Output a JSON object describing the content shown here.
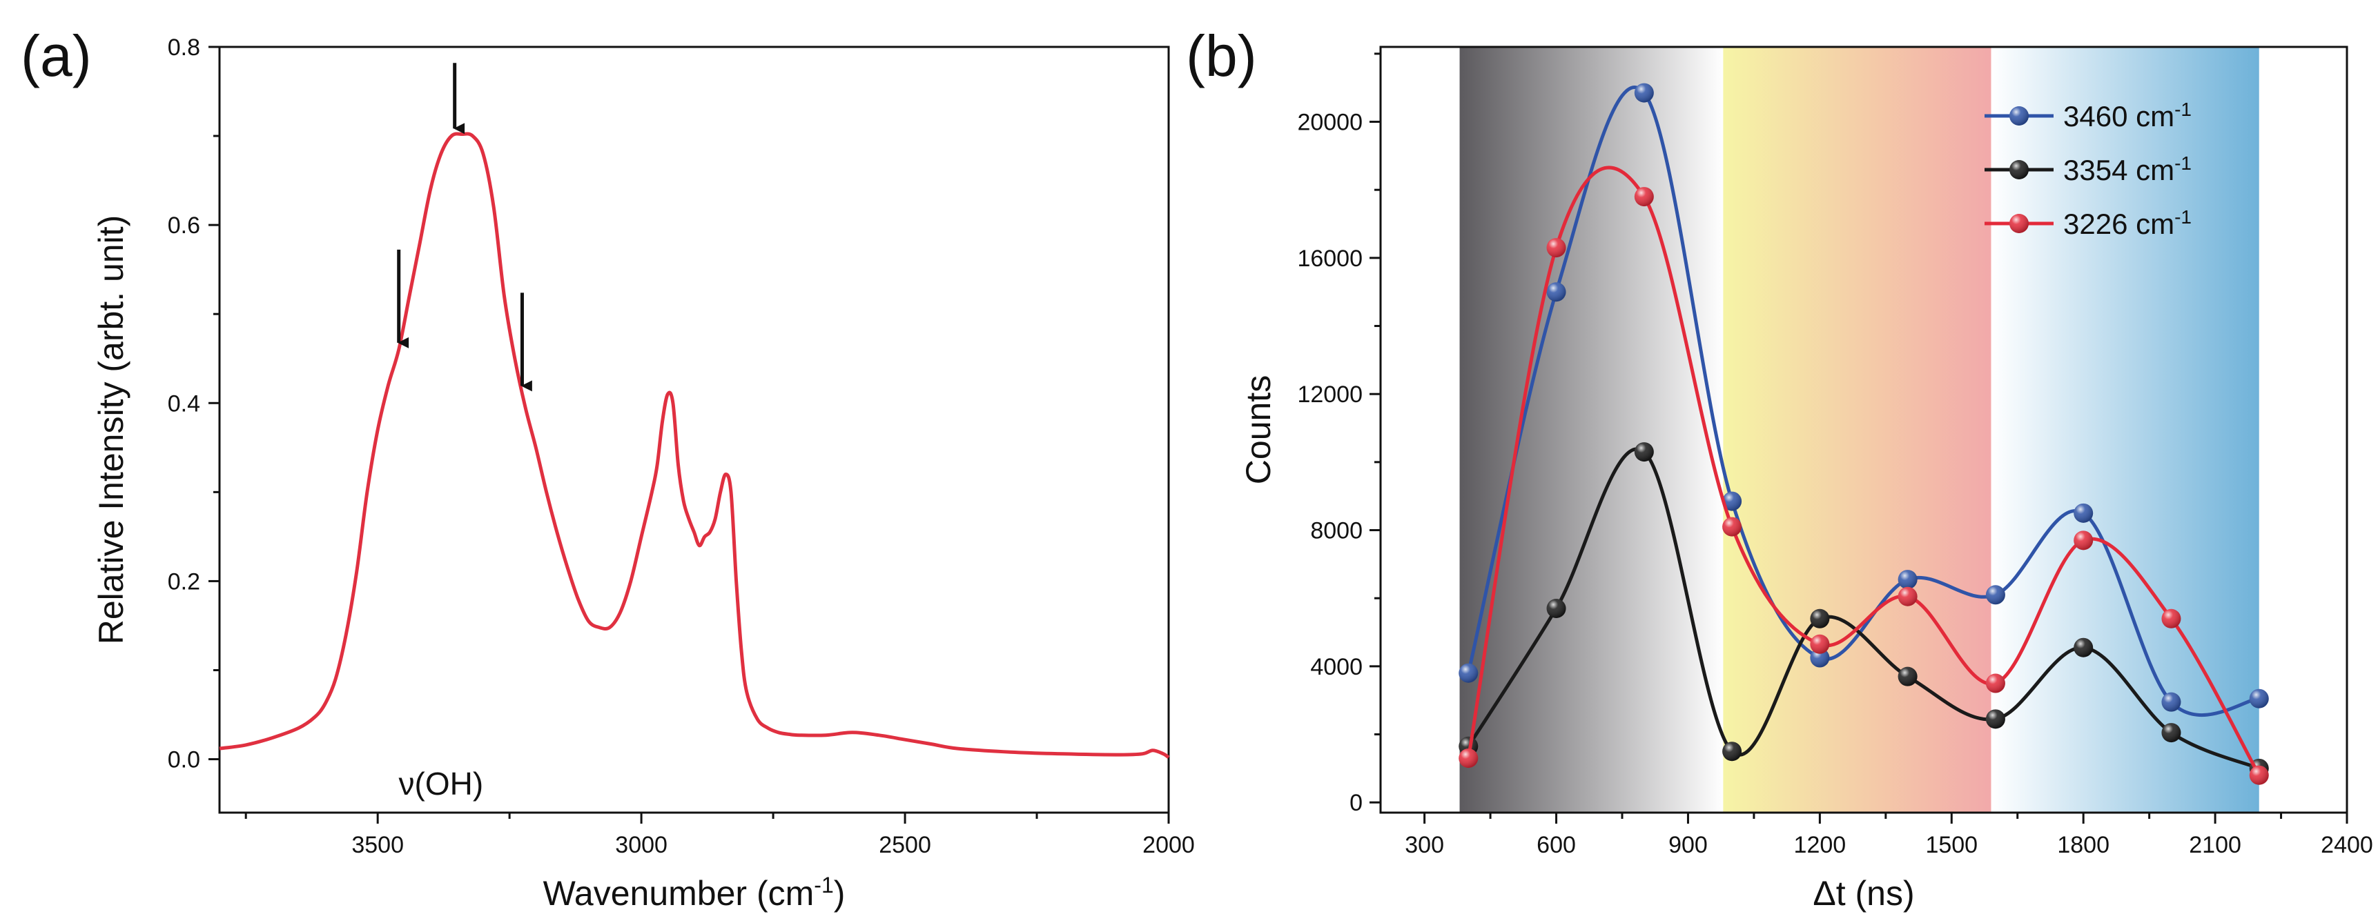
{
  "chart_data": [
    {
      "panel_label": "(a)",
      "type": "line",
      "xlabel": "Wavenumber (cm",
      "xlabel_sup": "-1",
      "xlabel_suffix": ")",
      "ylabel": "Relative Intensity (arbt. unit)",
      "xlim": [
        3800,
        2000
      ],
      "ylim": [
        -0.06,
        0.8
      ],
      "x_ticks": [
        3500,
        3000,
        2500,
        2000
      ],
      "x_tick_labels": [
        "3500",
        "3000",
        "2500",
        "2000"
      ],
      "y_ticks": [
        0.0,
        0.2,
        0.4,
        0.6,
        0.8
      ],
      "y_tick_labels": [
        "0.0",
        "0.2",
        "0.4",
        "0.6",
        "0.8"
      ],
      "grid": false,
      "line_color": "#e03040",
      "series": [
        {
          "x": [
            3800,
            3750,
            3700,
            3650,
            3620,
            3600,
            3580,
            3560,
            3540,
            3520,
            3500,
            3480,
            3460,
            3440,
            3420,
            3400,
            3380,
            3360,
            3340,
            3320,
            3300,
            3280,
            3260,
            3240,
            3220,
            3200,
            3180,
            3160,
            3140,
            3120,
            3100,
            3080,
            3060,
            3040,
            3020,
            3000,
            2980,
            2970,
            2960,
            2950,
            2940,
            2930,
            2920,
            2910,
            2900,
            2890,
            2880,
            2870,
            2860,
            2850,
            2840,
            2830,
            2820,
            2810,
            2800,
            2780,
            2760,
            2740,
            2720,
            2700,
            2650,
            2600,
            2550,
            2500,
            2450,
            2400,
            2300,
            2200,
            2100,
            2050,
            2030,
            2010,
            2000
          ],
          "y": [
            0.012,
            0.016,
            0.024,
            0.035,
            0.047,
            0.062,
            0.09,
            0.14,
            0.21,
            0.3,
            0.37,
            0.42,
            0.46,
            0.52,
            0.58,
            0.64,
            0.68,
            0.7,
            0.702,
            0.7,
            0.68,
            0.62,
            0.52,
            0.45,
            0.395,
            0.35,
            0.3,
            0.255,
            0.215,
            0.18,
            0.155,
            0.148,
            0.148,
            0.165,
            0.2,
            0.25,
            0.3,
            0.33,
            0.38,
            0.41,
            0.4,
            0.33,
            0.29,
            0.27,
            0.255,
            0.24,
            0.25,
            0.255,
            0.27,
            0.3,
            0.32,
            0.3,
            0.2,
            0.12,
            0.075,
            0.045,
            0.035,
            0.03,
            0.028,
            0.027,
            0.027,
            0.03,
            0.027,
            0.022,
            0.017,
            0.012,
            0.008,
            0.006,
            0.005,
            0.006,
            0.01,
            0.006,
            0.002
          ]
        }
      ],
      "annotation": "ν(OH)",
      "arrows_at_x": [
        3460,
        3354,
        3226
      ]
    },
    {
      "panel_label": "(b)",
      "type": "line",
      "xlabel": "Δt (ns)",
      "ylabel": "Counts",
      "xlim": [
        200,
        2400
      ],
      "ylim": [
        -300,
        22200
      ],
      "x_ticks": [
        300,
        600,
        900,
        1200,
        1500,
        1800,
        2100,
        2400
      ],
      "x_tick_labels": [
        "300",
        "600",
        "900",
        "1200",
        "1500",
        "1800",
        "2100",
        "2400"
      ],
      "y_ticks": [
        0,
        4000,
        8000,
        12000,
        16000,
        20000
      ],
      "y_tick_labels": [
        "0",
        "4000",
        "8000",
        "12000",
        "16000",
        "20000"
      ],
      "grid": false,
      "legend_position": "top-right",
      "shaded_regions": [
        {
          "x_start": 380,
          "x_end": 980,
          "color_start": "#5c5a5e",
          "color_end": "#ffffff"
        },
        {
          "x_start": 980,
          "x_end": 1590,
          "color_start": "#f6f4a6",
          "color_end": "#f2a9aa"
        },
        {
          "x_start": 1590,
          "x_end": 2200,
          "color_start": "#ffffff",
          "color_end": "#6fb2d9"
        }
      ],
      "x": [
        400,
        600,
        800,
        1000,
        1200,
        1400,
        1600,
        1800,
        2000,
        2200
      ],
      "series": [
        {
          "name": "3460 cm",
          "name_sup": "-1",
          "color": "#2f54a8",
          "values": [
            3800,
            15000,
            20850,
            8850,
            4250,
            6550,
            6100,
            8500,
            2950,
            3050
          ]
        },
        {
          "name": "3354 cm",
          "name_sup": "-1",
          "color": "#1a1a1a",
          "values": [
            1650,
            5700,
            10300,
            1500,
            5400,
            3700,
            2450,
            4550,
            2050,
            1000
          ]
        },
        {
          "name": "3226 cm",
          "name_sup": "-1",
          "color": "#e32a3a",
          "values": [
            1300,
            16300,
            17800,
            8100,
            4650,
            6050,
            3500,
            7700,
            5400,
            800
          ]
        }
      ]
    }
  ]
}
